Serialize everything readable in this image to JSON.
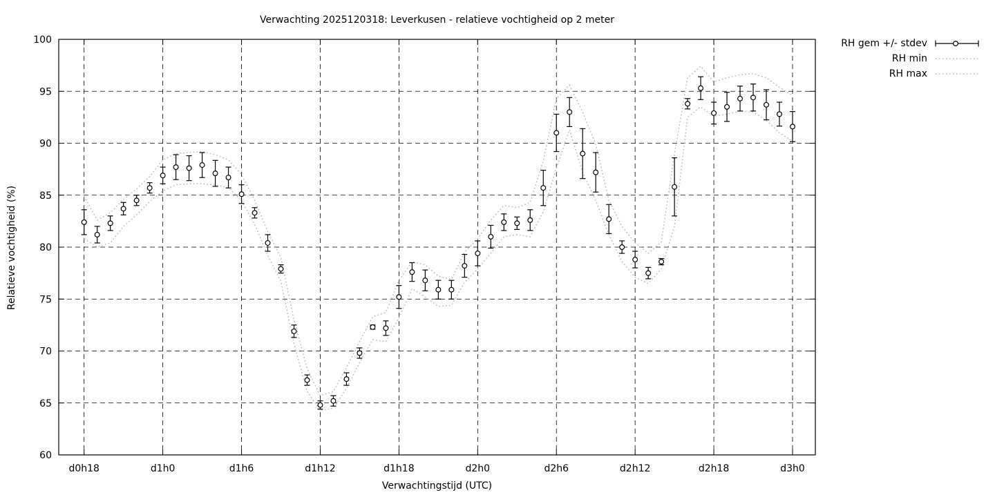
{
  "window": {
    "background": "#ffffff"
  },
  "chart_data": {
    "type": "scatter",
    "subtype": "points-with-errorbars-and-dotted-band",
    "title": "Verwachting 2025120318: Leverkusen - relatieve vochtigheid op 2 meter",
    "xlabel": "Verwachtingstijd (UTC)",
    "ylabel": "Relatieve vochtigheid (%)",
    "ylim": [
      60,
      100
    ],
    "yticks": [
      60,
      65,
      70,
      75,
      80,
      85,
      90,
      95,
      100
    ],
    "xlim_hours": [
      -1.93,
      55.73
    ],
    "xticks": [
      {
        "hour": 0,
        "label": "d0h18"
      },
      {
        "hour": 6,
        "label": "d1h0"
      },
      {
        "hour": 12,
        "label": "d1h6"
      },
      {
        "hour": 18,
        "label": "d1h12"
      },
      {
        "hour": 24,
        "label": "d1h18"
      },
      {
        "hour": 30,
        "label": "d2h0"
      },
      {
        "hour": 36,
        "label": "d2h6"
      },
      {
        "hour": 42,
        "label": "d2h12"
      },
      {
        "hour": 48,
        "label": "d2h18"
      },
      {
        "hour": 54,
        "label": "d3h0"
      }
    ],
    "grid": true,
    "legend_position": "top-right-outside",
    "x_hours_step": 1,
    "series": [
      {
        "name": "RH gem +/- stdev",
        "style": "points_errorbars",
        "values": [
          82.4,
          81.2,
          82.3,
          83.7,
          84.5,
          85.7,
          86.9,
          87.7,
          87.6,
          87.9,
          87.1,
          86.7,
          85.1,
          83.3,
          80.4,
          77.9,
          71.9,
          67.2,
          64.8,
          65.2,
          67.3,
          69.8,
          72.3,
          72.2,
          75.2,
          77.6,
          76.8,
          75.9,
          75.9,
          78.2,
          79.4,
          81.0,
          82.4,
          82.3,
          82.6,
          85.7,
          91.0,
          93.0,
          89.0,
          87.2,
          82.7,
          80.0,
          78.8,
          77.5,
          78.6,
          85.8,
          93.8,
          95.3,
          92.9,
          93.5,
          94.3,
          94.4,
          93.7,
          92.8,
          91.6
        ],
        "stdev": [
          1.2,
          0.8,
          0.7,
          0.6,
          0.5,
          0.5,
          0.8,
          1.2,
          1.2,
          1.2,
          1.25,
          1.0,
          0.9,
          0.5,
          0.8,
          0.4,
          0.6,
          0.5,
          0.4,
          0.5,
          0.6,
          0.5,
          0.2,
          0.7,
          1.1,
          0.9,
          1.0,
          0.9,
          0.9,
          1.1,
          1.2,
          1.1,
          0.8,
          0.6,
          1.0,
          1.7,
          1.8,
          1.4,
          2.4,
          1.9,
          1.4,
          0.6,
          0.8,
          0.55,
          0.3,
          2.8,
          0.5,
          1.1,
          1.05,
          1.4,
          1.2,
          1.3,
          1.45,
          1.15,
          1.45
        ]
      },
      {
        "name": "RH min",
        "style": "dotted",
        "values": [
          80.8,
          80.0,
          80.4,
          82.0,
          83.1,
          84.4,
          85.4,
          86.0,
          86.1,
          86.1,
          86.0,
          85.7,
          84.5,
          82.2,
          79.2,
          76.7,
          70.7,
          66.1,
          64.3,
          64.5,
          66.4,
          68.9,
          71.1,
          70.9,
          73.2,
          76.0,
          75.2,
          74.3,
          74.4,
          76.6,
          77.9,
          79.4,
          81.0,
          81.2,
          81.0,
          83.4,
          87.6,
          91.3,
          87.2,
          84.5,
          81.2,
          78.6,
          77.1,
          76.5,
          77.9,
          82.0,
          92.5,
          93.5,
          92.6,
          92.8,
          93.1,
          93.0,
          92.2,
          91.0,
          90.2
        ]
      },
      {
        "name": "RH max",
        "style": "dotted",
        "values": [
          84.9,
          82.6,
          83.3,
          84.6,
          85.6,
          86.8,
          88.4,
          89.0,
          89.1,
          89.2,
          88.9,
          88.4,
          87.0,
          84.5,
          81.5,
          79.0,
          73.0,
          68.3,
          65.7,
          66.1,
          68.4,
          70.9,
          73.3,
          73.7,
          76.8,
          78.6,
          78.3,
          77.2,
          76.9,
          79.5,
          80.8,
          82.6,
          84.0,
          83.8,
          84.3,
          88.3,
          94.3,
          95.6,
          93.0,
          89.9,
          84.5,
          82.0,
          80.4,
          79.4,
          80.5,
          89.0,
          96.3,
          97.4,
          95.9,
          96.3,
          96.6,
          96.7,
          96.3,
          95.4,
          94.6
        ]
      }
    ]
  },
  "colors": {
    "foreground": "#000000",
    "grid": "#000000",
    "band_dotted": "#b9b9b9",
    "marker_fill": "#ffffff",
    "background": "#ffffff"
  }
}
